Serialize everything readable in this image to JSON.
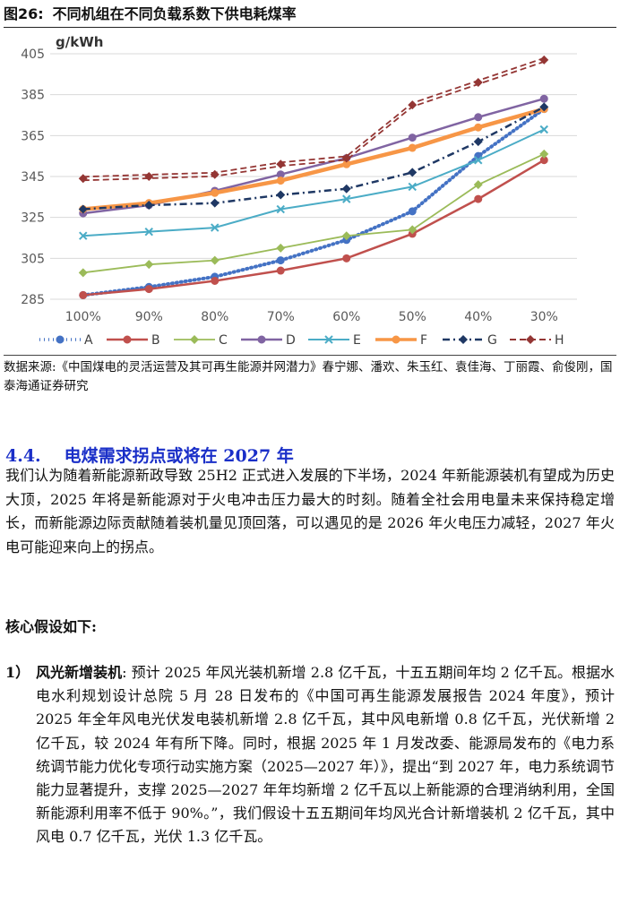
{
  "figure": {
    "label": "图26:",
    "title": "不同机组在不同负载系数下供电耗煤率"
  },
  "chart_data": {
    "type": "line",
    "unit_label": "g/kWh",
    "categories": [
      "100%",
      "90%",
      "80%",
      "70%",
      "60%",
      "50%",
      "40%",
      "30%"
    ],
    "ylim": [
      285,
      405
    ],
    "yticks": [
      285,
      305,
      325,
      345,
      365,
      385,
      405
    ],
    "grid": true,
    "legend_position": "bottom",
    "series": [
      {
        "name": "A",
        "color": "#4472c4",
        "style": "dotted-circle",
        "values": [
          287,
          291,
          296,
          304,
          314,
          328,
          355,
          378
        ]
      },
      {
        "name": "B",
        "color": "#c0504d",
        "style": "solid-circle",
        "values": [
          287,
          290,
          294,
          299,
          305,
          317,
          334,
          353
        ]
      },
      {
        "name": "C",
        "color": "#9bbb59",
        "style": "solid-diamond",
        "values": [
          298,
          302,
          304,
          310,
          316,
          319,
          341,
          356
        ]
      },
      {
        "name": "D",
        "color": "#8064a2",
        "style": "solid-circle",
        "values": [
          327,
          331,
          338,
          346,
          354,
          364,
          374,
          383
        ]
      },
      {
        "name": "E",
        "color": "#4bacc6",
        "style": "solid-x",
        "values": [
          316,
          318,
          320,
          329,
          334,
          340,
          353,
          368
        ]
      },
      {
        "name": "F",
        "color": "#f79646",
        "style": "thick-circle",
        "values": [
          329,
          332,
          337,
          343,
          351,
          359,
          369,
          378
        ]
      },
      {
        "name": "G",
        "color": "#1f3864",
        "style": "dashdot-diamond",
        "values": [
          329,
          331,
          332,
          336,
          339,
          347,
          362,
          379
        ]
      },
      {
        "name": "H",
        "color": "#943634",
        "style": "double-dash-diamond",
        "values": [
          344,
          345,
          346,
          351,
          354,
          380,
          391,
          402
        ]
      }
    ]
  },
  "source": "数据来源:《中国煤电的灵活运营及其可再生能源并网潜力》春宁娜、潘欢、朱玉红、袁佳海、丁丽霞、俞俊刚，国泰海通证券研究",
  "section": {
    "number": "4.4.",
    "title": "电煤需求拐点或将在 2027 年",
    "paragraph": "我们认为随着新能源新政导致 25H2 正式进入发展的下半场，2024 年新能源装机有望成为历史大顶，2025 年将是新能源对于火电冲击压力最大的时刻。随着全社会用电量未来保持稳定增长，而新能源边际贡献随着装机量见顶回落，可以遇见的是 2026 年火电压力减轻，2027 年火电可能迎来向上的拐点。"
  },
  "assumptions_heading": "核心假设如下:",
  "items": [
    {
      "marker": "1）",
      "term": "风光新增装机",
      "text": ": 预计 2025 年风光装机新增 2.8 亿千瓦，十五五期间年均 2 亿千瓦。根据水电水利规划设计总院 5 月 28 日发布的《中国可再生能源发展报告 2024 年度》，预计 2025 年全年风电光伏发电装机新增 2.8 亿千瓦，其中风电新增 0.8 亿千瓦，光伏新增 2 亿千瓦，较 2024 年有所下降。同时，根据 2025 年 1 月发改委、能源局发布的《电力系统调节能力优化专项行动实施方案（2025—2027 年）》，提出“到 2027 年，电力系统调节能力显著提升，支撑 2025—2027 年年均新增 2 亿千瓦以上新能源的合理消纳利用，全国新能源利用率不低于 90%。”，我们假设十五五期间年均风光合计新增装机 2 亿千瓦，其中风电 0.7 亿千瓦，光伏 1.3 亿千瓦。"
    }
  ]
}
